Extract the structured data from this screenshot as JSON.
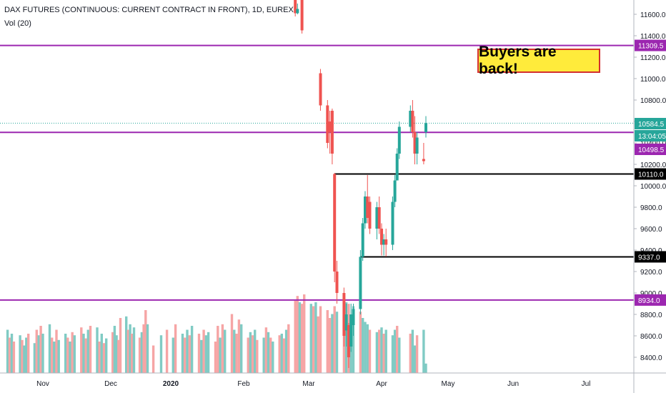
{
  "header": {
    "symbol_line": "DAX FUTURES (CONTINUOUS: CURRENT CONTRACT IN FRONT), 1D, EUREX",
    "volume_line": "Vol (20)"
  },
  "annotation": {
    "callout_text": "Buyers are back!"
  },
  "price_labels": {
    "level_11309": "11309.5",
    "last_price": "10584.5",
    "countdown": "13:04:05",
    "level_10498": "10498.5",
    "level_10110": "10110.0",
    "level_9337": "9337.0",
    "level_8934": "8934.0"
  },
  "colors": {
    "up": "#26a69a",
    "down": "#ef5350",
    "vol_up": "#80cbc4",
    "vol_down": "#f6a5a5",
    "purple": "#9c27b0",
    "black": "#000000",
    "last_line": "#26a69a"
  },
  "chart_data": {
    "type": "candlestick",
    "title": "DAX FUTURES (CONTINUOUS: CURRENT CONTRACT IN FRONT), 1D, EUREX",
    "y_axis": {
      "ticks": [
        8400,
        8600,
        8800,
        9000,
        9200,
        9400,
        9600,
        9800,
        10000,
        10200,
        10400,
        10600,
        10800,
        11000,
        11200,
        11400,
        11600
      ],
      "tick_labels": [
        "8400.0",
        "8600.0",
        "8800.0",
        "9000.0",
        "9200.0",
        "9400.0",
        "9600.0",
        "9800.0",
        "10000.0",
        "10200.0",
        "10400.0",
        "10600.0",
        "10800.0",
        "11000.0",
        "11200.0",
        "11400.0",
        "11600.0"
      ],
      "range": [
        8250,
        11700
      ]
    },
    "x_axis": {
      "labels": [
        "Nov",
        "Dec",
        "2020",
        "Feb",
        "Mar",
        "Apr",
        "May",
        "Jun",
        "Jul"
      ],
      "bold": [
        "2020"
      ]
    },
    "horizontal_levels": [
      {
        "value": 11309.5,
        "color": "purple"
      },
      {
        "value": 10498.5,
        "color": "purple"
      },
      {
        "value": 8934.0,
        "color": "purple"
      },
      {
        "value": 10110.0,
        "color": "black",
        "from_date": "2020-03-12"
      },
      {
        "value": 9337.0,
        "color": "black",
        "from_date": "2020-03-23"
      }
    ],
    "last_price": 10584.5,
    "candles": [
      {
        "date": "2020-02-24",
        "o": 11900,
        "h": 11950,
        "l": 11580,
        "c": 11610
      },
      {
        "date": "2020-02-25",
        "o": 11610,
        "h": 11700,
        "l": 11600,
        "c": 11650
      },
      {
        "date": "2020-02-27",
        "o": 11750,
        "h": 11760,
        "l": 11420,
        "c": 11450
      },
      {
        "date": "2020-03-06",
        "o": 11050,
        "h": 11090,
        "l": 10700,
        "c": 10750
      },
      {
        "date": "2020-03-09",
        "o": 10750,
        "h": 10800,
        "l": 10350,
        "c": 10400
      },
      {
        "date": "2020-03-10",
        "o": 10600,
        "h": 10700,
        "l": 10300,
        "c": 10500
      },
      {
        "date": "2020-03-11",
        "o": 10700,
        "h": 10720,
        "l": 10200,
        "c": 10300
      },
      {
        "date": "2020-03-12",
        "o": 10110,
        "h": 10120,
        "l": 9100,
        "c": 9200
      },
      {
        "date": "2020-03-13",
        "o": 9200,
        "h": 9300,
        "l": 8900,
        "c": 9000
      },
      {
        "date": "2020-03-16",
        "o": 9000,
        "h": 9050,
        "l": 8500,
        "c": 8600
      },
      {
        "date": "2020-03-17",
        "o": 8650,
        "h": 8900,
        "l": 8500,
        "c": 8800
      },
      {
        "date": "2020-03-18",
        "o": 8700,
        "h": 8720,
        "l": 8300,
        "c": 8400
      },
      {
        "date": "2020-03-19",
        "o": 8500,
        "h": 8900,
        "l": 8450,
        "c": 8800
      },
      {
        "date": "2020-03-20",
        "o": 8700,
        "h": 8900,
        "l": 8600,
        "c": 8850
      },
      {
        "date": "2020-03-23",
        "o": 8850,
        "h": 9400,
        "l": 8800,
        "c": 9337
      },
      {
        "date": "2020-03-24",
        "o": 9337,
        "h": 9700,
        "l": 9300,
        "c": 9650
      },
      {
        "date": "2020-03-25",
        "o": 9650,
        "h": 9950,
        "l": 9600,
        "c": 9900
      },
      {
        "date": "2020-03-26",
        "o": 9900,
        "h": 10100,
        "l": 9650,
        "c": 9700
      },
      {
        "date": "2020-03-27",
        "o": 9850,
        "h": 9900,
        "l": 9550,
        "c": 9600
      },
      {
        "date": "2020-03-30",
        "o": 9600,
        "h": 9850,
        "l": 9500,
        "c": 9800
      },
      {
        "date": "2020-03-31",
        "o": 9800,
        "h": 9900,
        "l": 9550,
        "c": 9600
      },
      {
        "date": "2020-04-01",
        "o": 9600,
        "h": 9650,
        "l": 9350,
        "c": 9450
      },
      {
        "date": "2020-04-02",
        "o": 9450,
        "h": 9550,
        "l": 9350,
        "c": 9500
      },
      {
        "date": "2020-04-03",
        "o": 9500,
        "h": 9600,
        "l": 9340,
        "c": 9450
      },
      {
        "date": "2020-04-06",
        "o": 9450,
        "h": 9900,
        "l": 9400,
        "c": 9850
      },
      {
        "date": "2020-04-07",
        "o": 9850,
        "h": 10100,
        "l": 9800,
        "c": 10050
      },
      {
        "date": "2020-04-08",
        "o": 10050,
        "h": 10350,
        "l": 10050,
        "c": 10300
      },
      {
        "date": "2020-04-09",
        "o": 10300,
        "h": 10600,
        "l": 10250,
        "c": 10550
      },
      {
        "date": "2020-04-14",
        "o": 10550,
        "h": 10750,
        "l": 10500,
        "c": 10700
      },
      {
        "date": "2020-04-15",
        "o": 10700,
        "h": 10800,
        "l": 10450,
        "c": 10500
      },
      {
        "date": "2020-04-16",
        "o": 10500,
        "h": 10650,
        "l": 10200,
        "c": 10300
      },
      {
        "date": "2020-04-17",
        "o": 10300,
        "h": 10500,
        "l": 10200,
        "c": 10450
      },
      {
        "date": "2020-04-20",
        "o": 10250,
        "h": 10400,
        "l": 10200,
        "c": 10230
      },
      {
        "date": "2020-04-21",
        "o": 10500,
        "h": 10650,
        "l": 10450,
        "c": 10584.5
      }
    ],
    "volume": {
      "visible_label": "Vol (20)",
      "bars": [
        {
          "date": "2019-10-15",
          "v": 0.55,
          "dir": "up"
        },
        {
          "date": "2019-10-16",
          "v": 0.45,
          "dir": "down"
        },
        {
          "date": "2019-10-17",
          "v": 0.5,
          "dir": "up"
        },
        {
          "date": "2019-10-18",
          "v": 0.4,
          "dir": "down"
        },
        {
          "date": "2019-10-21",
          "v": 0.48,
          "dir": "up"
        },
        {
          "date": "2019-10-22",
          "v": 0.42,
          "dir": "down"
        },
        {
          "date": "2019-10-23",
          "v": 0.35,
          "dir": "up"
        },
        {
          "date": "2019-10-24",
          "v": 0.45,
          "dir": "up"
        },
        {
          "date": "2019-10-25",
          "v": 0.5,
          "dir": "down"
        },
        {
          "date": "2019-10-28",
          "v": 0.38,
          "dir": "up"
        },
        {
          "date": "2019-10-29",
          "v": 0.55,
          "dir": "down"
        },
        {
          "date": "2019-10-30",
          "v": 0.48,
          "dir": "up"
        },
        {
          "date": "2019-10-31",
          "v": 0.6,
          "dir": "down"
        },
        {
          "date": "2019-11-01",
          "v": 0.5,
          "dir": "up"
        },
        {
          "date": "2019-11-04",
          "v": 0.62,
          "dir": "up"
        },
        {
          "date": "2019-11-05",
          "v": 0.45,
          "dir": "down"
        },
        {
          "date": "2019-11-06",
          "v": 0.4,
          "dir": "up"
        },
        {
          "date": "2019-11-07",
          "v": 0.55,
          "dir": "down"
        },
        {
          "date": "2019-11-08",
          "v": 0.42,
          "dir": "up"
        },
        {
          "date": "2019-11-11",
          "v": 0.5,
          "dir": "up"
        },
        {
          "date": "2019-11-12",
          "v": 0.45,
          "dir": "down"
        },
        {
          "date": "2019-11-13",
          "v": 0.4,
          "dir": "up"
        },
        {
          "date": "2019-11-14",
          "v": 0.52,
          "dir": "down"
        },
        {
          "date": "2019-11-15",
          "v": 0.48,
          "dir": "up"
        },
        {
          "date": "2019-11-18",
          "v": 0.58,
          "dir": "down"
        },
        {
          "date": "2019-11-19",
          "v": 0.5,
          "dir": "up"
        },
        {
          "date": "2019-11-20",
          "v": 0.44,
          "dir": "down"
        },
        {
          "date": "2019-11-21",
          "v": 0.55,
          "dir": "up"
        },
        {
          "date": "2019-11-22",
          "v": 0.6,
          "dir": "down"
        },
        {
          "date": "2019-11-25",
          "v": 0.58,
          "dir": "up"
        },
        {
          "date": "2019-11-26",
          "v": 0.4,
          "dir": "down"
        },
        {
          "date": "2019-11-27",
          "v": 0.5,
          "dir": "up"
        },
        {
          "date": "2019-11-28",
          "v": 0.38,
          "dir": "down"
        },
        {
          "date": "2019-11-29",
          "v": 0.44,
          "dir": "up"
        },
        {
          "date": "2019-12-02",
          "v": 0.52,
          "dir": "down"
        },
        {
          "date": "2019-12-03",
          "v": 0.6,
          "dir": "up"
        },
        {
          "date": "2019-12-04",
          "v": 0.48,
          "dir": "up"
        },
        {
          "date": "2019-12-05",
          "v": 0.42,
          "dir": "down"
        },
        {
          "date": "2019-12-06",
          "v": 0.7,
          "dir": "down"
        },
        {
          "date": "2019-12-09",
          "v": 0.72,
          "dir": "up"
        },
        {
          "date": "2019-12-10",
          "v": 0.55,
          "dir": "down"
        },
        {
          "date": "2019-12-11",
          "v": 0.62,
          "dir": "up"
        },
        {
          "date": "2019-12-12",
          "v": 0.5,
          "dir": "down"
        },
        {
          "date": "2019-12-13",
          "v": 0.58,
          "dir": "up"
        },
        {
          "date": "2019-12-16",
          "v": 0.45,
          "dir": "down"
        },
        {
          "date": "2019-12-17",
          "v": 0.52,
          "dir": "up"
        },
        {
          "date": "2019-12-18",
          "v": 0.62,
          "dir": "down"
        },
        {
          "date": "2019-12-19",
          "v": 0.8,
          "dir": "down"
        },
        {
          "date": "2019-12-20",
          "v": 0.62,
          "dir": "up"
        },
        {
          "date": "2019-12-23",
          "v": 0.35,
          "dir": "down"
        },
        {
          "date": "2019-12-27",
          "v": 0.48,
          "dir": "up"
        },
        {
          "date": "2019-12-30",
          "v": 0.55,
          "dir": "down"
        },
        {
          "date": "2020-01-02",
          "v": 0.45,
          "dir": "up"
        },
        {
          "date": "2020-01-03",
          "v": 0.62,
          "dir": "down"
        },
        {
          "date": "2020-01-06",
          "v": 0.5,
          "dir": "up"
        },
        {
          "date": "2020-01-07",
          "v": 0.45,
          "dir": "down"
        },
        {
          "date": "2020-01-08",
          "v": 0.55,
          "dir": "up"
        },
        {
          "date": "2020-01-09",
          "v": 0.48,
          "dir": "down"
        },
        {
          "date": "2020-01-10",
          "v": 0.6,
          "dir": "up"
        },
        {
          "date": "2020-01-13",
          "v": 0.5,
          "dir": "down"
        },
        {
          "date": "2020-01-14",
          "v": 0.42,
          "dir": "up"
        },
        {
          "date": "2020-01-15",
          "v": 0.55,
          "dir": "down"
        },
        {
          "date": "2020-01-16",
          "v": 0.48,
          "dir": "up"
        },
        {
          "date": "2020-01-17",
          "v": 0.52,
          "dir": "up"
        },
        {
          "date": "2020-01-20",
          "v": 0.4,
          "dir": "down"
        },
        {
          "date": "2020-01-21",
          "v": 0.6,
          "dir": "down"
        },
        {
          "date": "2020-01-22",
          "v": 0.45,
          "dir": "up"
        },
        {
          "date": "2020-01-23",
          "v": 0.62,
          "dir": "down"
        },
        {
          "date": "2020-01-24",
          "v": 0.55,
          "dir": "up"
        },
        {
          "date": "2020-01-27",
          "v": 0.75,
          "dir": "down"
        },
        {
          "date": "2020-01-28",
          "v": 0.55,
          "dir": "up"
        },
        {
          "date": "2020-01-29",
          "v": 0.5,
          "dir": "down"
        },
        {
          "date": "2020-01-30",
          "v": 0.68,
          "dir": "down"
        },
        {
          "date": "2020-01-31",
          "v": 0.62,
          "dir": "up"
        },
        {
          "date": "2020-02-03",
          "v": 0.45,
          "dir": "down"
        },
        {
          "date": "2020-02-04",
          "v": 0.52,
          "dir": "up"
        },
        {
          "date": "2020-02-05",
          "v": 0.48,
          "dir": "down"
        },
        {
          "date": "2020-02-06",
          "v": 0.55,
          "dir": "up"
        },
        {
          "date": "2020-02-07",
          "v": 0.42,
          "dir": "down"
        },
        {
          "date": "2020-02-10",
          "v": 0.45,
          "dir": "up"
        },
        {
          "date": "2020-02-11",
          "v": 0.58,
          "dir": "down"
        },
        {
          "date": "2020-02-12",
          "v": 0.52,
          "dir": "up"
        },
        {
          "date": "2020-02-13",
          "v": 0.45,
          "dir": "down"
        },
        {
          "date": "2020-02-14",
          "v": 0.4,
          "dir": "up"
        },
        {
          "date": "2020-02-17",
          "v": 0.48,
          "dir": "down"
        },
        {
          "date": "2020-02-18",
          "v": 0.5,
          "dir": "up"
        },
        {
          "date": "2020-02-19",
          "v": 0.44,
          "dir": "down"
        },
        {
          "date": "2020-02-20",
          "v": 0.55,
          "dir": "up"
        },
        {
          "date": "2020-02-21",
          "v": 0.62,
          "dir": "down"
        },
        {
          "date": "2020-02-24",
          "v": 0.92,
          "dir": "down"
        },
        {
          "date": "2020-02-25",
          "v": 0.98,
          "dir": "down"
        },
        {
          "date": "2020-02-26",
          "v": 0.9,
          "dir": "up"
        },
        {
          "date": "2020-02-27",
          "v": 0.88,
          "dir": "down"
        },
        {
          "date": "2020-02-28",
          "v": 1.0,
          "dir": "down"
        },
        {
          "date": "2020-03-02",
          "v": 0.88,
          "dir": "up"
        },
        {
          "date": "2020-03-03",
          "v": 0.85,
          "dir": "down"
        },
        {
          "date": "2020-03-04",
          "v": 0.9,
          "dir": "up"
        },
        {
          "date": "2020-03-05",
          "v": 0.72,
          "dir": "down"
        },
        {
          "date": "2020-03-06",
          "v": 0.85,
          "dir": "down"
        },
        {
          "date": "2020-03-09",
          "v": 0.8,
          "dir": "down"
        },
        {
          "date": "2020-03-10",
          "v": 0.7,
          "dir": "down"
        },
        {
          "date": "2020-03-11",
          "v": 0.75,
          "dir": "up"
        },
        {
          "date": "2020-03-12",
          "v": 0.85,
          "dir": "down"
        },
        {
          "date": "2020-03-13",
          "v": 0.78,
          "dir": "up"
        },
        {
          "date": "2020-03-16",
          "v": 0.95,
          "dir": "down"
        },
        {
          "date": "2020-03-17",
          "v": 0.9,
          "dir": "up"
        },
        {
          "date": "2020-03-18",
          "v": 0.88,
          "dir": "down"
        },
        {
          "date": "2020-03-19",
          "v": 0.72,
          "dir": "up"
        },
        {
          "date": "2020-03-20",
          "v": 0.85,
          "dir": "up"
        },
        {
          "date": "2020-03-23",
          "v": 0.78,
          "dir": "down"
        },
        {
          "date": "2020-03-24",
          "v": 0.7,
          "dir": "up"
        },
        {
          "date": "2020-03-25",
          "v": 0.65,
          "dir": "up"
        },
        {
          "date": "2020-03-26",
          "v": 0.62,
          "dir": "up"
        },
        {
          "date": "2020-03-27",
          "v": 0.55,
          "dir": "down"
        },
        {
          "date": "2020-03-30",
          "v": 0.52,
          "dir": "up"
        },
        {
          "date": "2020-03-31",
          "v": 0.55,
          "dir": "down"
        },
        {
          "date": "2020-04-01",
          "v": 0.58,
          "dir": "up"
        },
        {
          "date": "2020-04-02",
          "v": 0.5,
          "dir": "down"
        },
        {
          "date": "2020-04-03",
          "v": 0.55,
          "dir": "up"
        },
        {
          "date": "2020-04-06",
          "v": 0.48,
          "dir": "up"
        },
        {
          "date": "2020-04-07",
          "v": 0.55,
          "dir": "up"
        },
        {
          "date": "2020-04-08",
          "v": 0.6,
          "dir": "down"
        },
        {
          "date": "2020-04-09",
          "v": 0.45,
          "dir": "up"
        },
        {
          "date": "2020-04-14",
          "v": 0.5,
          "dir": "down"
        },
        {
          "date": "2020-04-15",
          "v": 0.55,
          "dir": "up"
        },
        {
          "date": "2020-04-16",
          "v": 0.35,
          "dir": "up"
        },
        {
          "date": "2020-04-17",
          "v": 0.48,
          "dir": "down"
        },
        {
          "date": "2020-04-20",
          "v": 0.55,
          "dir": "up"
        },
        {
          "date": "2020-04-21",
          "v": 0.12,
          "dir": "up"
        }
      ]
    }
  }
}
